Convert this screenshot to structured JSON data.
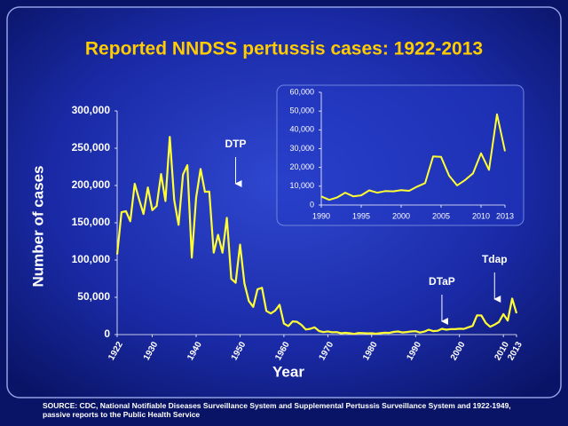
{
  "chart_data": [
    {
      "type": "line",
      "title": "Reported  NNDSS pertussis cases: 1922-2013",
      "x_label": "Year",
      "y_label": "Number of cases",
      "footnote": "SOURCE:  CDC, National Notifiable Diseases  Surveillance System and Supplemental Pertussis  Surveillance System and 1922-1949,  passive reports to the Public Health Service",
      "x": [
        1922,
        1923,
        1924,
        1925,
        1926,
        1927,
        1928,
        1929,
        1930,
        1931,
        1932,
        1933,
        1934,
        1935,
        1936,
        1937,
        1938,
        1939,
        1940,
        1941,
        1942,
        1943,
        1944,
        1945,
        1946,
        1947,
        1948,
        1949,
        1950,
        1951,
        1952,
        1953,
        1954,
        1955,
        1956,
        1957,
        1958,
        1959,
        1960,
        1961,
        1962,
        1963,
        1964,
        1965,
        1966,
        1967,
        1968,
        1969,
        1970,
        1971,
        1972,
        1973,
        1974,
        1975,
        1976,
        1977,
        1978,
        1979,
        1980,
        1981,
        1982,
        1983,
        1984,
        1985,
        1986,
        1987,
        1988,
        1989,
        1990,
        1991,
        1992,
        1993,
        1994,
        1995,
        1996,
        1997,
        1998,
        1999,
        2000,
        2001,
        2002,
        2003,
        2004,
        2005,
        2006,
        2007,
        2008,
        2009,
        2010,
        2011,
        2012,
        2013
      ],
      "series": [
        {
          "color": "#ffff33",
          "values": [
            107473,
            164191,
            165418,
            152003,
            202210,
            181411,
            161799,
            197371,
            166914,
            172559,
            215343,
            179135,
            265269,
            180518,
            147237,
            214652,
            227319,
            103188,
            183866,
            222202,
            191383,
            191890,
            109873,
            133792,
            109860,
            156517,
            74715,
            69479,
            120718,
            68687,
            45030,
            37129,
            60886,
            62786,
            31732,
            28295,
            32148,
            40005,
            14809,
            11468,
            17749,
            17135,
            13005,
            6799,
            7717,
            9718,
            4810,
            3285,
            4249,
            3036,
            3287,
            1759,
            2402,
            1738,
            1010,
            2177,
            2063,
            1623,
            1730,
            1248,
            1895,
            2463,
            2276,
            3589,
            4195,
            2823,
            3450,
            4157,
            4570,
            2719,
            4083,
            6586,
            4617,
            5137,
            7796,
            6564,
            7405,
            7288,
            7867,
            7580,
            9771,
            11647,
            25827,
            25616,
            15632,
            10454,
            13278,
            16858,
            27550,
            18719,
            48277,
            28639
          ]
        }
      ],
      "xlim": [
        1922,
        2013
      ],
      "xticks": [
        1922,
        1930,
        1940,
        1950,
        1960,
        1970,
        1980,
        1990,
        2000,
        2010,
        2013
      ],
      "ylim": [
        0,
        300000
      ],
      "yticks": [
        0,
        {
          "value": 50000,
          "label": "50,000"
        },
        {
          "value": 100000,
          "label": "100,000"
        },
        {
          "value": 150000,
          "label": "150,000"
        },
        {
          "value": 200000,
          "label": "200,000"
        },
        {
          "value": 250000,
          "label": "250,000"
        },
        {
          "value": 300000,
          "label": "300,000"
        }
      ],
      "annotations": [
        {
          "text": "DTP",
          "x": 1949
        },
        {
          "text": "DTaP",
          "x": 1996
        },
        {
          "text": "Tdap",
          "x": 2008
        }
      ]
    },
    {
      "type": "line",
      "x": [
        1990,
        1991,
        1992,
        1993,
        1994,
        1995,
        1996,
        1997,
        1998,
        1999,
        2000,
        2001,
        2002,
        2003,
        2004,
        2005,
        2006,
        2007,
        2008,
        2009,
        2010,
        2011,
        2012,
        2013
      ],
      "series": [
        {
          "color": "#ffff33",
          "values": [
            4570,
            2719,
            4083,
            6586,
            4617,
            5137,
            7796,
            6564,
            7405,
            7288,
            7867,
            7580,
            9771,
            11647,
            25827,
            25616,
            15632,
            10454,
            13278,
            16858,
            27550,
            18719,
            48277,
            28639
          ]
        }
      ],
      "xlim": [
        1990,
        2013
      ],
      "xticks": [
        1990,
        1995,
        2000,
        2005,
        2010,
        2013
      ],
      "ylim": [
        0,
        60000
      ],
      "yticks": [
        0,
        {
          "value": 10000,
          "label": "10,000"
        },
        {
          "value": 20000,
          "label": "20,000"
        },
        {
          "value": 30000,
          "label": "30,000"
        },
        {
          "value": 40000,
          "label": "40,000"
        },
        {
          "value": 50000,
          "label": "50,000"
        },
        {
          "value": 60000,
          "label": "60,000"
        }
      ]
    }
  ]
}
